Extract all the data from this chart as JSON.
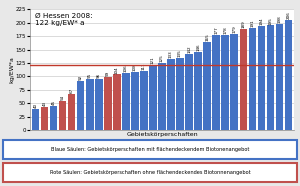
{
  "values": [
    40,
    43,
    45,
    54,
    67,
    92,
    95,
    96,
    99,
    104,
    106,
    108,
    111,
    121,
    125,
    133,
    135,
    142,
    146,
    165,
    177,
    178,
    179,
    189,
    191,
    194,
    195,
    198,
    206
  ],
  "colors": [
    "blue",
    "red",
    "blue",
    "red",
    "red",
    "blue",
    "blue",
    "blue",
    "red",
    "red",
    "blue",
    "blue",
    "blue",
    "blue",
    "blue",
    "blue",
    "blue",
    "blue",
    "blue",
    "blue",
    "blue",
    "blue",
    "blue",
    "red",
    "blue",
    "blue",
    "blue",
    "blue",
    "blue"
  ],
  "bar_color_blue": "#4472C4",
  "bar_color_red": "#C0504D",
  "hline_value": 122,
  "hline_color": "#C0392B",
  "ylabel": "kg/EW*a",
  "xlabel": "Gebietskörperschaften",
  "ylim": [
    0,
    225
  ],
  "yticks": [
    0,
    25,
    50,
    75,
    100,
    125,
    150,
    175,
    200,
    225
  ],
  "annotation_text": "Ø Hessen 2008:\n122 kg/EW* a",
  "legend_blue": "Blaue Säulen: Gebietskörperschaften mit flächendeckendem Biotonenangebot",
  "legend_red": "Rote Säulen: Gebietskörperschaften ohne flächendeckendes Biotonnenangebot",
  "background_color": "#E8E8E8",
  "plot_bg_color": "#FFFFFF",
  "grid_color": "#C0C0C0"
}
